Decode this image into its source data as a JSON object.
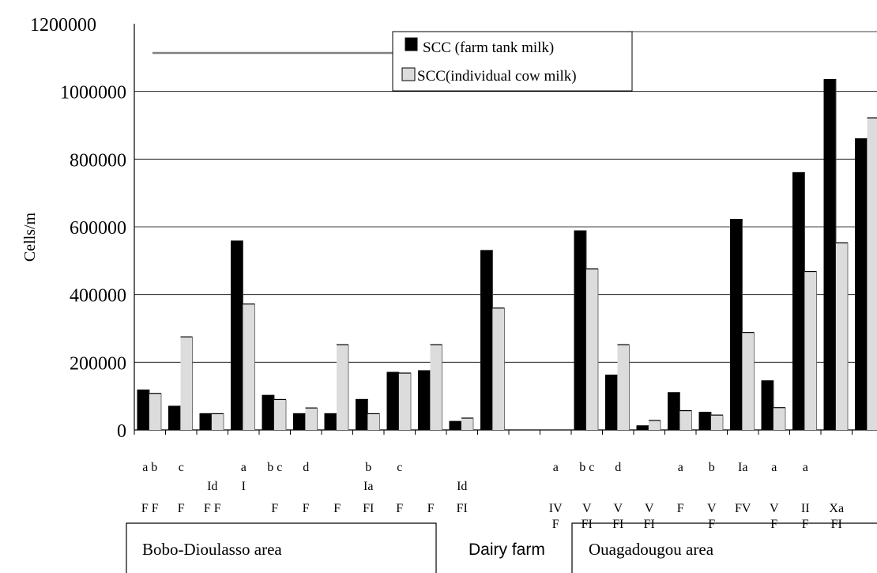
{
  "chart_data": {
    "type": "bar",
    "title": "",
    "ylabel": "Cells/m",
    "xlabel": "",
    "ylim": [
      0,
      1200000
    ],
    "yticks": [
      0,
      200000,
      400000,
      600000,
      800000,
      1000000,
      1200000
    ],
    "ytick_labels": [
      "0",
      "200000",
      "400000",
      "600000",
      "800000",
      "1000000",
      "1200000"
    ],
    "grid": true,
    "legend_position": "top-center",
    "colors": {
      "farm_tank": "#000000",
      "individual": "#dcdcdc"
    },
    "series": [
      {
        "name": "SCC (farm tank milk)",
        "values": [
          118000,
          70000,
          48000,
          558000,
          102000,
          48000,
          48000,
          90000,
          170000,
          175000,
          25000,
          530000,
          null,
          null,
          588000,
          162000,
          12000,
          110000,
          52000,
          622000,
          145000,
          760000,
          1035000,
          860000
        ]
      },
      {
        "name": "SCC(individual cow milk)",
        "values": [
          108000,
          275000,
          48000,
          372000,
          90000,
          65000,
          252000,
          48000,
          168000,
          252000,
          35000,
          360000,
          null,
          null,
          476000,
          252000,
          28000,
          57000,
          44000,
          288000,
          66000,
          468000,
          553000,
          922000
        ]
      }
    ],
    "category_labels": {
      "row1": [
        "a b",
        "c",
        "",
        "a",
        "b c",
        "d",
        "",
        "b",
        "c",
        "",
        "",
        "",
        "",
        "a",
        "b c",
        "d",
        "",
        "a",
        "b",
        "Ia",
        "a",
        "a",
        "",
        ""
      ],
      "row2": [
        "",
        "",
        "Id",
        "I",
        "",
        "",
        "",
        "Ia",
        "",
        "",
        "Id",
        "",
        "",
        "",
        "",
        "",
        "",
        "",
        "",
        "",
        "",
        "",
        "",
        ""
      ],
      "row3": [
        "F F",
        "F",
        "F F",
        "",
        "F",
        "F",
        "F",
        "FI",
        "F",
        "F",
        "FI",
        "",
        "",
        "IV",
        "V",
        "V",
        "V",
        "F",
        "V",
        "FV",
        "V",
        "II",
        "Xa",
        ""
      ],
      "row4": [
        "",
        "",
        "",
        "",
        "",
        "",
        "",
        "",
        "",
        "",
        "",
        "",
        "",
        "F",
        "FI",
        "FI",
        "FI",
        "",
        "F",
        "",
        "F",
        "F",
        "FI",
        ""
      ]
    },
    "groups": [
      {
        "label": "Bobo-Dioulasso area"
      },
      {
        "label": "Dairy farm"
      },
      {
        "label": "Ouagadougou area"
      }
    ]
  }
}
